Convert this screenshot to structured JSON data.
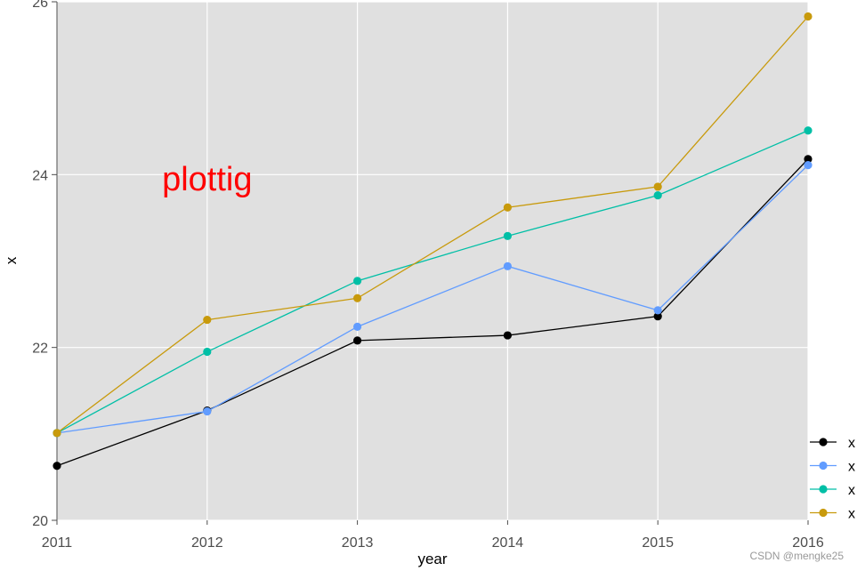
{
  "chart_data": {
    "type": "line",
    "x": [
      2011,
      2012,
      2013,
      2014,
      2015,
      2016
    ],
    "x_tick_labels": [
      "2011",
      "2012",
      "2013",
      "2014",
      "2015",
      "2016"
    ],
    "y_tick_labels": [
      "20",
      "22",
      "24",
      "26"
    ],
    "y_ticks": [
      20,
      22,
      24,
      26
    ],
    "xlabel": "year",
    "ylabel": "x",
    "xlim": [
      2011,
      2016
    ],
    "ylim": [
      20,
      26
    ],
    "grid": true,
    "panel_background": "#e0e0e0",
    "legend_position": "bottom-right",
    "annotation": {
      "text": "plottig",
      "x": 2012.0,
      "y": 23.95,
      "color": "#ff0000"
    },
    "series": [
      {
        "name": "x",
        "color": "#000000",
        "values": [
          20.63,
          21.27,
          22.08,
          22.14,
          22.36,
          24.18
        ]
      },
      {
        "name": "x",
        "color": "#619cff",
        "values": [
          21.01,
          21.26,
          22.24,
          22.94,
          22.43,
          24.11
        ]
      },
      {
        "name": "x",
        "color": "#00bfa6",
        "values": [
          21.01,
          21.95,
          22.77,
          23.29,
          23.76,
          24.51
        ]
      },
      {
        "name": "x",
        "color": "#c89a0c",
        "values": [
          21.01,
          22.32,
          22.57,
          23.62,
          23.86,
          25.83
        ]
      }
    ]
  },
  "watermark": "CSDN @mengke25"
}
